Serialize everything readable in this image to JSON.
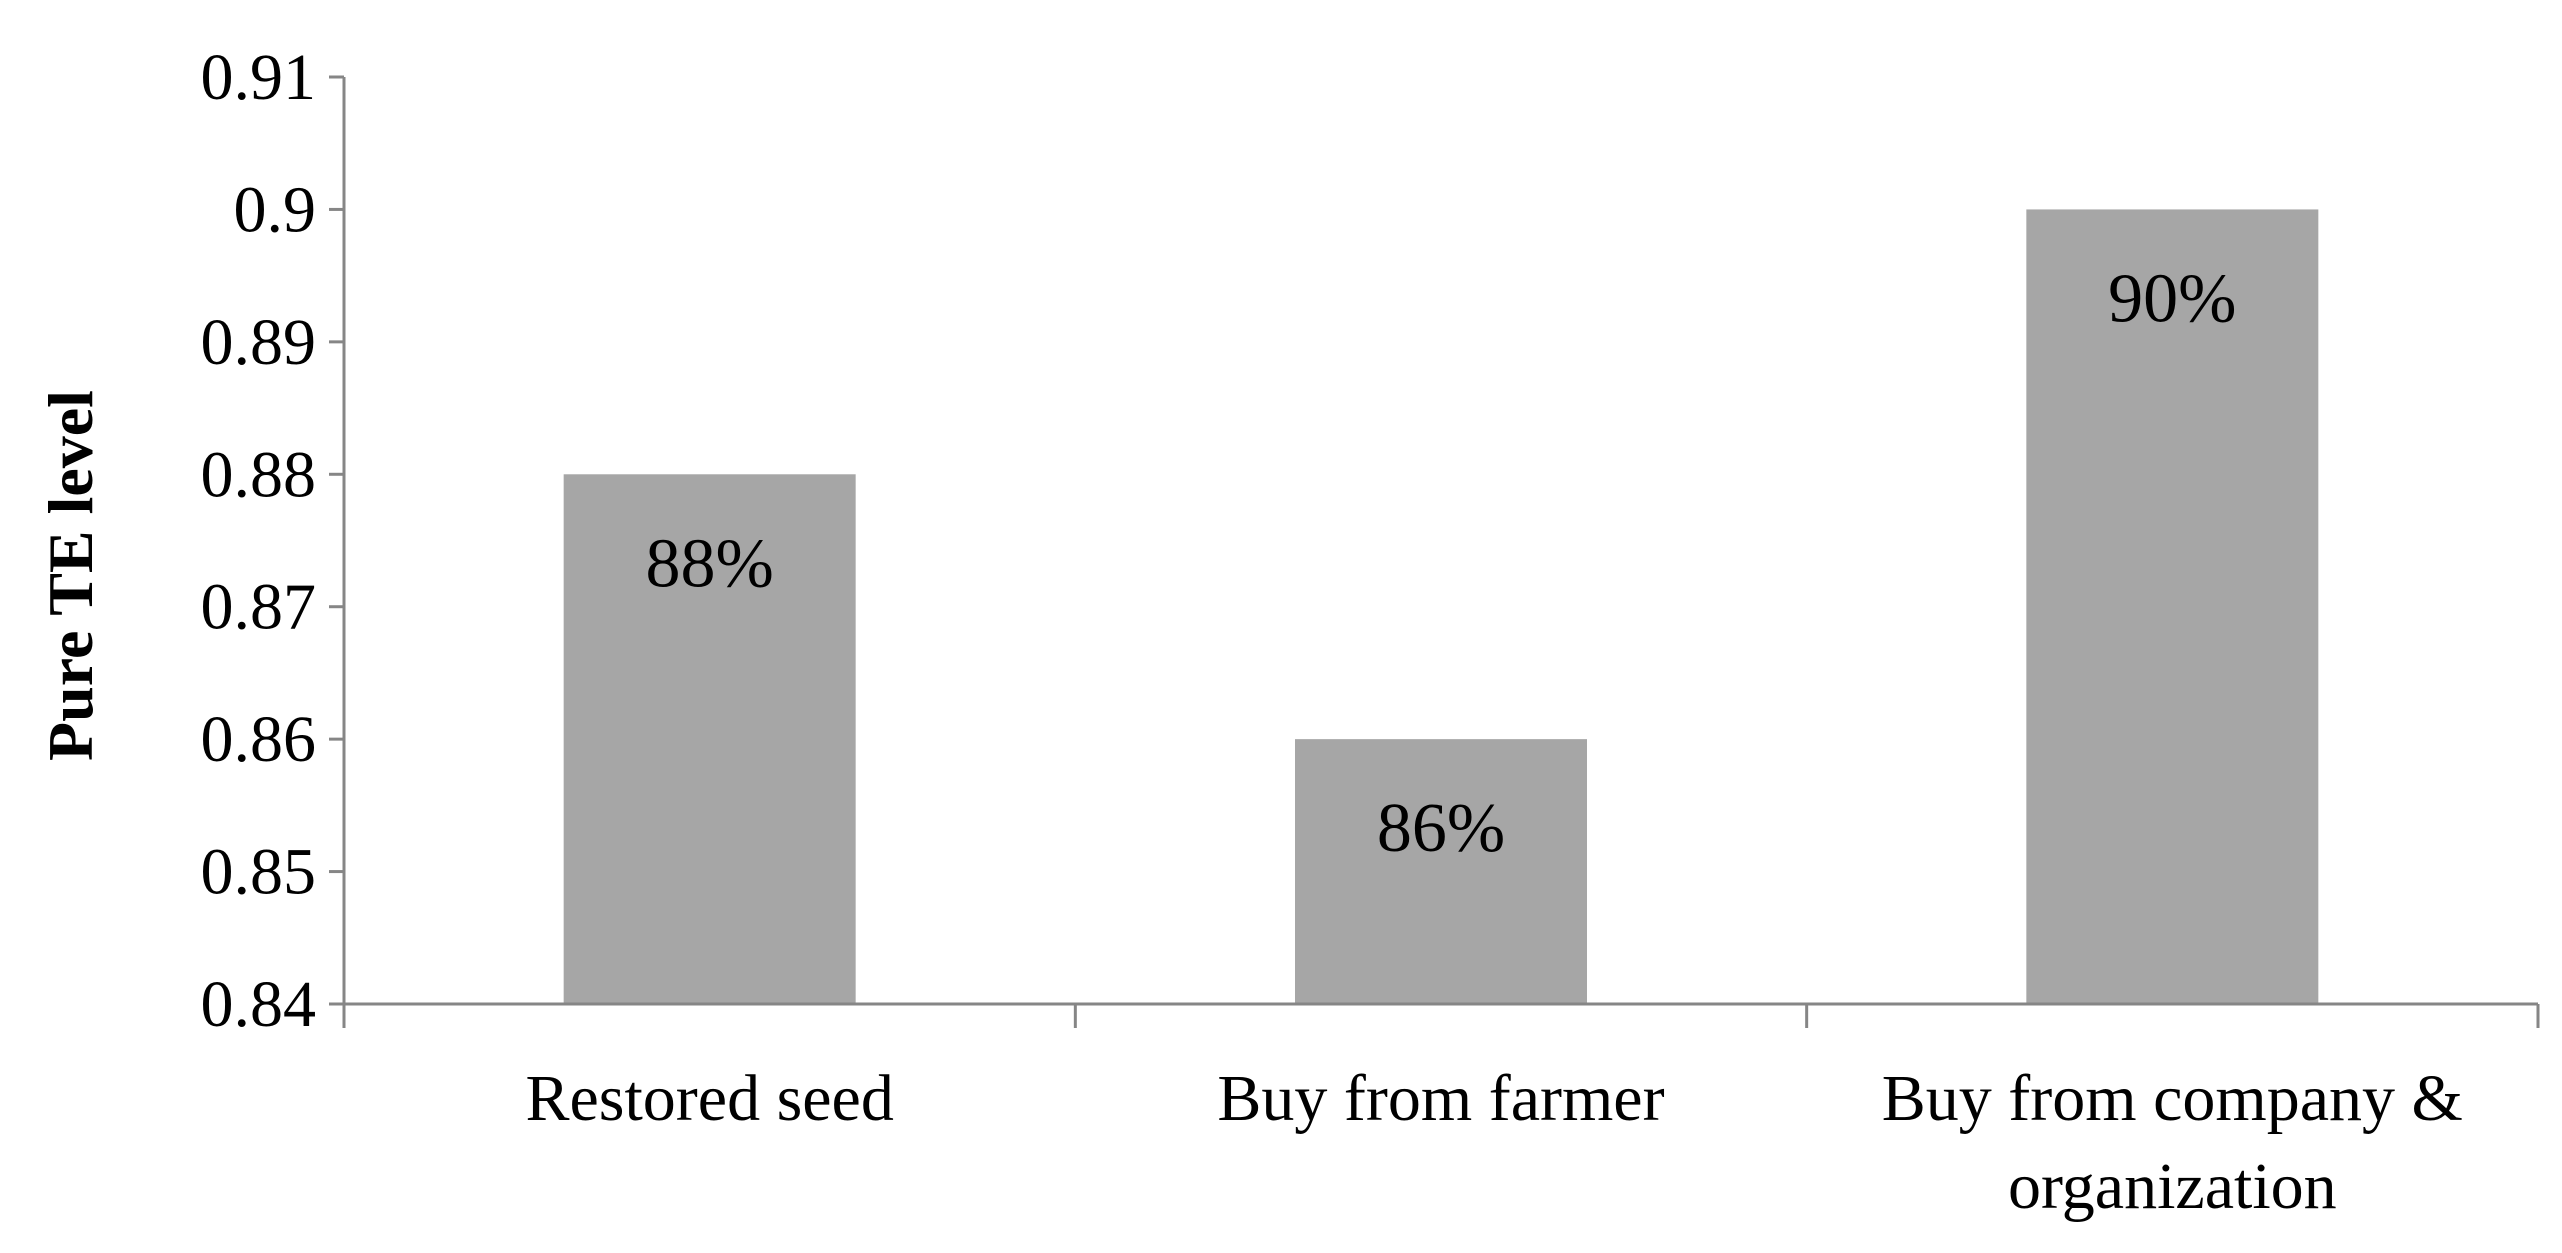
{
  "chart_data": {
    "type": "bar",
    "categories": [
      [
        "Restored seed"
      ],
      [
        "Buy from farmer"
      ],
      [
        "Buy from company &",
        "organization"
      ]
    ],
    "values": [
      0.88,
      0.86,
      0.9
    ],
    "data_labels": [
      "88%",
      "86%",
      "90%"
    ],
    "ylabel": "Pure TE level",
    "xlabel": "",
    "ylim": [
      0.84,
      0.91
    ],
    "yticks": [
      "0.84",
      "0.85",
      "0.86",
      "0.87",
      "0.88",
      "0.89",
      "0.9",
      "0.91"
    ],
    "grid": false,
    "legend": "none",
    "bar_color": "#a6a6a6",
    "axis_color": "#868686"
  }
}
